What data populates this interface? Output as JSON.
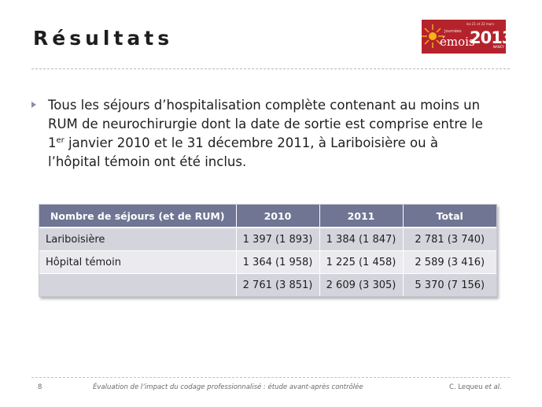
{
  "title": "Résultats",
  "logo": {
    "journees": "Journées",
    "emois": "émois",
    "dates": "les 21 et 22 mars",
    "year": "2013",
    "city": "NANCY"
  },
  "bullet": {
    "line1": "Tous les séjours d’hospitalisation complète contenant au moins un",
    "line2": "RUM de neurochirurgie dont la date de sortie est comprise entre le",
    "line3_before": "1",
    "line3_sup": "er",
    "line3_after": " janvier 2010 et le 31 décembre 2011, à Lariboisière ou à",
    "line4": "l’hôpital témoin ont été inclus."
  },
  "table": {
    "headers": [
      "Nombre de séjours (et de RUM)",
      "2010",
      "2011",
      "Total"
    ],
    "rows": [
      [
        "Lariboisière",
        "1 397 (1 893)",
        "1 384 (1 847)",
        "2 781 (3 740)"
      ],
      [
        "Hôpital témoin",
        "1 364 (1 958)",
        "1 225 (1 458)",
        "2 589 (3 416)"
      ],
      [
        "",
        "2 761 (3 851)",
        "2 609 (3 305)",
        "5 370 (7 156)"
      ]
    ]
  },
  "footer": {
    "page": "8",
    "center": "Évaluation de l’impact du codage professionnalisé : étude avant-après contrôlée",
    "author": "C. Lequeu ",
    "etal": "et al."
  },
  "colors": {
    "header_bg": "#6f7593",
    "row_odd": "#d4d5dc",
    "row_even": "#ebebef",
    "logo_bg": "#b4232c"
  }
}
